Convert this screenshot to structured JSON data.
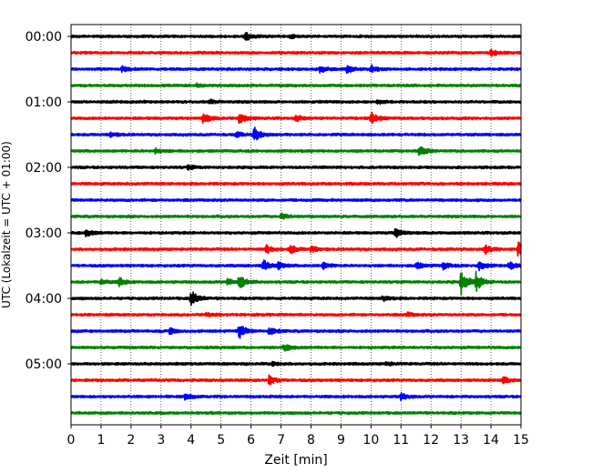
{
  "chart_data": {
    "type": "line",
    "title": "",
    "xlabel": "Zeit  [min]",
    "ylabel": "UTC (Lokalzeit = UTC + 01:00)",
    "xlim": [
      0,
      15
    ],
    "xticks": [
      0,
      1,
      2,
      3,
      4,
      5,
      6,
      7,
      8,
      9,
      10,
      11,
      12,
      13,
      14,
      15
    ],
    "xtick_labels": [
      "0",
      "1",
      "2",
      "3",
      "4",
      "5",
      "6",
      "7",
      "8",
      "9",
      "10",
      "11",
      "12",
      "13",
      "14",
      "15"
    ],
    "y_tick_labels": [
      "00:00",
      "01:00",
      "02:00",
      "03:00",
      "04:00",
      "05:00"
    ],
    "y_tick_rows": [
      0,
      4,
      8,
      12,
      16,
      20
    ],
    "grid_x": true,
    "row_interval_minutes": 15,
    "color_cycle": [
      "#000000",
      "#ff0000",
      "#0000ff",
      "#008000"
    ],
    "rows": [
      {
        "start": "00:00",
        "events": [
          [
            5.8,
            0.5
          ],
          [
            7.3,
            0.2
          ]
        ]
      },
      {
        "start": "00:15",
        "events": [
          [
            14.0,
            0.35
          ]
        ]
      },
      {
        "start": "00:30",
        "events": [
          [
            1.7,
            0.3
          ],
          [
            8.3,
            0.4
          ],
          [
            9.2,
            0.45
          ],
          [
            10.0,
            0.45
          ]
        ]
      },
      {
        "start": "00:45",
        "events": [
          [
            4.2,
            0.15
          ]
        ]
      },
      {
        "start": "01:00",
        "events": [
          [
            4.6,
            0.25
          ],
          [
            10.2,
            0.3
          ]
        ]
      },
      {
        "start": "01:15",
        "events": [
          [
            4.4,
            0.6
          ],
          [
            5.6,
            0.65
          ],
          [
            7.5,
            0.35
          ],
          [
            10.0,
            0.7
          ]
        ]
      },
      {
        "start": "01:30",
        "events": [
          [
            1.3,
            0.3
          ],
          [
            5.5,
            0.3
          ],
          [
            6.1,
            0.9
          ]
        ]
      },
      {
        "start": "01:45",
        "events": [
          [
            2.8,
            0.3
          ],
          [
            11.6,
            0.7
          ]
        ]
      },
      {
        "start": "02:00",
        "events": [
          [
            3.9,
            0.25
          ]
        ]
      },
      {
        "start": "02:15",
        "events": []
      },
      {
        "start": "02:30",
        "events": []
      },
      {
        "start": "02:45",
        "events": [
          [
            7.0,
            0.4
          ]
        ]
      },
      {
        "start": "03:00",
        "events": [
          [
            0.5,
            0.4
          ],
          [
            10.8,
            0.6
          ]
        ]
      },
      {
        "start": "03:15",
        "events": [
          [
            6.5,
            0.5
          ],
          [
            7.3,
            0.55
          ],
          [
            8.0,
            0.4
          ],
          [
            13.8,
            0.55
          ],
          [
            14.9,
            0.9
          ]
        ]
      },
      {
        "start": "03:30",
        "events": [
          [
            6.4,
            0.7
          ],
          [
            6.9,
            0.4
          ],
          [
            8.4,
            0.4
          ],
          [
            11.5,
            0.4
          ],
          [
            12.4,
            0.4
          ],
          [
            13.6,
            0.6
          ],
          [
            14.6,
            0.45
          ]
        ]
      },
      {
        "start": "03:45",
        "events": [
          [
            1.0,
            0.35
          ],
          [
            1.6,
            0.5
          ],
          [
            5.2,
            0.4
          ],
          [
            5.6,
            0.9
          ],
          [
            13.0,
            1.5
          ],
          [
            13.5,
            1.1
          ]
        ]
      },
      {
        "start": "04:00",
        "events": [
          [
            4.0,
            1.0
          ],
          [
            10.4,
            0.35
          ]
        ]
      },
      {
        "start": "04:15",
        "events": [
          [
            4.5,
            0.3
          ],
          [
            11.2,
            0.25
          ]
        ]
      },
      {
        "start": "04:30",
        "events": [
          [
            3.3,
            0.4
          ],
          [
            5.6,
            0.9
          ],
          [
            6.6,
            0.5
          ]
        ]
      },
      {
        "start": "04:45",
        "events": [
          [
            7.1,
            0.4
          ]
        ]
      },
      {
        "start": "05:00",
        "events": [
          [
            6.7,
            0.2
          ],
          [
            10.5,
            0.2
          ]
        ]
      },
      {
        "start": "05:15",
        "events": [
          [
            6.6,
            0.55
          ],
          [
            14.4,
            0.4
          ]
        ]
      },
      {
        "start": "05:30",
        "events": [
          [
            3.8,
            0.35
          ],
          [
            11.0,
            0.4
          ]
        ]
      },
      {
        "start": "05:45",
        "events": []
      }
    ]
  }
}
